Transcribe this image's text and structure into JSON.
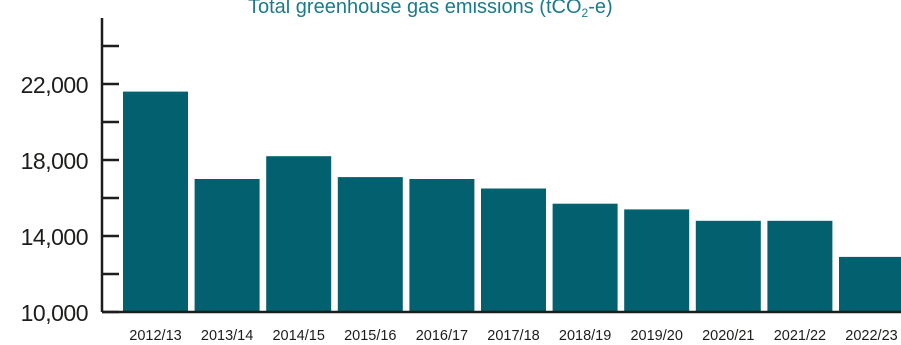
{
  "chart_data": {
    "type": "bar",
    "title_main": "Total greenhouse gas emissions (tCO",
    "title_sub": "2",
    "title_end": "-e)",
    "categories": [
      "2012/13",
      "2013/14",
      "2014/15",
      "2015/16",
      "2016/17",
      "2017/18",
      "2018/19",
      "2019/20",
      "2020/21",
      "2021/22",
      "2022/23"
    ],
    "values": [
      21600,
      17000,
      18200,
      17100,
      17000,
      16500,
      15700,
      15400,
      14800,
      14800,
      12900
    ],
    "ylim": [
      10000,
      25500
    ],
    "yticks": [
      "10,000",
      "14,000",
      "18,000",
      "22,000"
    ],
    "ytick_values": [
      10000,
      14000,
      18000,
      22000
    ],
    "minor_tick_step": 2000,
    "xlabel": "",
    "ylabel": "",
    "grid": false,
    "colors": {
      "bar": "#03606f",
      "axis": "#1d1d1b",
      "title": "#1a7b8c"
    }
  }
}
